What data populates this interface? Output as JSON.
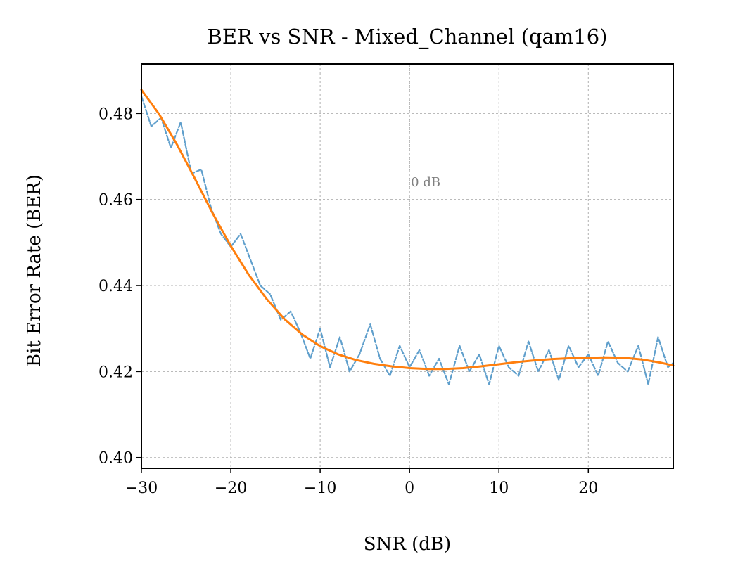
{
  "chart_data": {
    "type": "line",
    "title": "BER vs SNR - Mixed_Channel (qam16)",
    "xlabel": "SNR (dB)",
    "ylabel": "Bit Error Rate (BER)",
    "xlim": [
      -30,
      29.5
    ],
    "ylim": [
      0.3975,
      0.4915
    ],
    "xticks": [
      -30,
      -20,
      -10,
      0,
      10,
      20
    ],
    "xtick_labels": [
      "−30",
      "−20",
      "−10",
      "0",
      "10",
      "20"
    ],
    "yticks": [
      0.4,
      0.42,
      0.44,
      0.46,
      0.48
    ],
    "ytick_labels": [
      "0.40",
      "0.42",
      "0.44",
      "0.46",
      "0.48"
    ],
    "grid": true,
    "legend": "none",
    "annotations": [
      {
        "text": "0 dB",
        "x": 0,
        "y": 0.464,
        "vline_x": 0
      }
    ],
    "series": [
      {
        "style": "dashed",
        "color": "#5f9fcc",
        "x": [
          -30.0,
          -28.9,
          -27.8,
          -26.7,
          -25.6,
          -24.4,
          -23.3,
          -22.2,
          -21.1,
          -20.0,
          -18.9,
          -17.8,
          -16.7,
          -15.6,
          -14.4,
          -13.3,
          -12.2,
          -11.1,
          -10.0,
          -8.9,
          -7.8,
          -6.7,
          -5.6,
          -4.4,
          -3.3,
          -2.2,
          -1.1,
          0.0,
          1.1,
          2.2,
          3.3,
          4.4,
          5.6,
          6.7,
          7.8,
          8.9,
          10.0,
          11.1,
          12.2,
          13.3,
          14.4,
          15.6,
          16.7,
          17.8,
          18.9,
          20.0,
          21.1,
          22.2,
          23.3,
          24.4,
          25.6,
          26.7,
          27.8,
          28.9,
          29.5
        ],
        "y": [
          0.484,
          0.477,
          0.479,
          0.472,
          0.478,
          0.466,
          0.467,
          0.458,
          0.452,
          0.449,
          0.452,
          0.446,
          0.44,
          0.438,
          0.432,
          0.434,
          0.429,
          0.423,
          0.43,
          0.421,
          0.428,
          0.42,
          0.424,
          0.431,
          0.423,
          0.419,
          0.426,
          0.421,
          0.425,
          0.419,
          0.423,
          0.417,
          0.426,
          0.42,
          0.424,
          0.417,
          0.426,
          0.421,
          0.419,
          0.427,
          0.42,
          0.425,
          0.418,
          0.426,
          0.421,
          0.424,
          0.419,
          0.427,
          0.422,
          0.42,
          0.426,
          0.417,
          0.428,
          0.421,
          0.422
        ]
      },
      {
        "style": "solid",
        "color": "#ff7f0e",
        "x": [
          -30,
          -28,
          -26,
          -24,
          -22,
          -20,
          -18,
          -16,
          -14,
          -12,
          -10,
          -8,
          -6,
          -4,
          -2,
          0,
          2,
          4,
          6,
          8,
          10,
          12,
          14,
          16,
          18,
          20,
          22,
          24,
          26,
          28,
          29.5
        ],
        "y": [
          0.4855,
          0.4798,
          0.4727,
          0.4648,
          0.4567,
          0.4492,
          0.4425,
          0.4369,
          0.4322,
          0.4286,
          0.4259,
          0.424,
          0.4227,
          0.4218,
          0.4212,
          0.4208,
          0.4206,
          0.4206,
          0.4208,
          0.4212,
          0.4217,
          0.4222,
          0.4226,
          0.4229,
          0.4231,
          0.4232,
          0.4233,
          0.4232,
          0.4228,
          0.4221,
          0.4214
        ]
      }
    ]
  }
}
